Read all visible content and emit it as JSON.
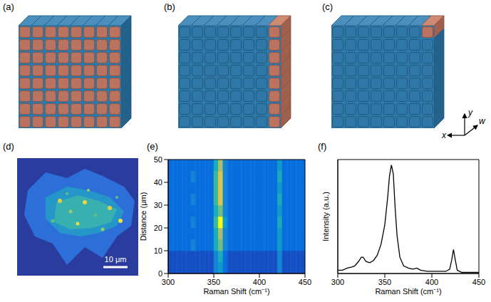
{
  "panel_labels": [
    "(a)",
    "(b)",
    "(c)",
    "(d)",
    "(e)",
    "(f)"
  ],
  "axis_key": [
    "x",
    "y",
    "w"
  ],
  "map": {
    "scale_bar": "10 μm"
  },
  "chart_data": [
    {
      "type": "heatmap",
      "xlabel": "Raman Shift (cm⁻¹)",
      "ylabel": "Distance (μm)",
      "xlim": [
        300,
        450
      ],
      "xticks": [
        300,
        350,
        400,
        450
      ],
      "ylim": [
        0,
        50
      ],
      "yticks": [
        0,
        10,
        20,
        30,
        40,
        50
      ],
      "x_bins": [
        300,
        305,
        310,
        315,
        320,
        325,
        330,
        335,
        340,
        345,
        350,
        355,
        360,
        365,
        370,
        375,
        380,
        385,
        390,
        395,
        400,
        405,
        410,
        415,
        420,
        425,
        430,
        435,
        440,
        445,
        450
      ],
      "y_bins": [
        0,
        5,
        10,
        15,
        20,
        25,
        30,
        35,
        40,
        45,
        50
      ],
      "zlim": [
        0,
        10
      ],
      "cells": [
        [
          1,
          1,
          1,
          1,
          1,
          1,
          1,
          1,
          1,
          1,
          3,
          4,
          2,
          1,
          1,
          1,
          1,
          1,
          1,
          1,
          1,
          1,
          1,
          1,
          3,
          1,
          1,
          1,
          1,
          1
        ],
        [
          1,
          1,
          1,
          1,
          1,
          1,
          1,
          1,
          1,
          1,
          3,
          5,
          2,
          1,
          1,
          1,
          1,
          1,
          1,
          1,
          1,
          1,
          1,
          1,
          3,
          1,
          1,
          1,
          1,
          1
        ],
        [
          2,
          2,
          2,
          2,
          2,
          3,
          2,
          2,
          2,
          2,
          5,
          7,
          3,
          2,
          2,
          2,
          2,
          2,
          2,
          2,
          2,
          2,
          2,
          2,
          4,
          2,
          2,
          2,
          2,
          2
        ],
        [
          2,
          2,
          2,
          2,
          2,
          2,
          2,
          2,
          2,
          2,
          5,
          8,
          3,
          2,
          2,
          2,
          2,
          2,
          2,
          2,
          2,
          2,
          2,
          2,
          4,
          2,
          2,
          2,
          2,
          2
        ],
        [
          2,
          2,
          2,
          2,
          2,
          3,
          2,
          2,
          2,
          2,
          6,
          10,
          4,
          2,
          2,
          2,
          2,
          2,
          2,
          2,
          2,
          2,
          2,
          2,
          5,
          2,
          2,
          2,
          2,
          2
        ],
        [
          2,
          2,
          2,
          2,
          2,
          2,
          2,
          2,
          2,
          2,
          5,
          7,
          3,
          2,
          2,
          2,
          2,
          2,
          2,
          2,
          2,
          2,
          2,
          2,
          4,
          2,
          2,
          2,
          2,
          2
        ],
        [
          2,
          2,
          2,
          2,
          2,
          3,
          2,
          2,
          2,
          2,
          6,
          9,
          3,
          2,
          2,
          2,
          2,
          2,
          2,
          2,
          2,
          2,
          2,
          2,
          5,
          2,
          2,
          2,
          2,
          2
        ],
        [
          2,
          2,
          2,
          2,
          2,
          2,
          2,
          2,
          2,
          2,
          6,
          9,
          3,
          2,
          2,
          2,
          2,
          2,
          2,
          2,
          2,
          2,
          2,
          2,
          4,
          2,
          2,
          2,
          2,
          2
        ],
        [
          2,
          2,
          2,
          2,
          2,
          3,
          2,
          2,
          2,
          2,
          6,
          9,
          3,
          2,
          2,
          2,
          2,
          2,
          2,
          2,
          2,
          2,
          2,
          2,
          5,
          2,
          2,
          2,
          2,
          2
        ],
        [
          2,
          2,
          2,
          2,
          2,
          2,
          2,
          2,
          2,
          2,
          5,
          8,
          3,
          2,
          2,
          2,
          2,
          2,
          2,
          2,
          2,
          2,
          2,
          2,
          4,
          2,
          2,
          2,
          2,
          2
        ]
      ]
    },
    {
      "type": "line",
      "xlabel": "Raman Shift (cm⁻¹)",
      "ylabel": "Intensity (a.u.)",
      "xlim": [
        300,
        450
      ],
      "xticks": [
        300,
        350,
        400,
        450
      ],
      "ylim": [
        0,
        1.05
      ],
      "tick_labels": "x",
      "color": "#000000",
      "x": [
        300,
        305,
        310,
        315,
        318,
        322,
        325,
        327,
        330,
        334,
        338,
        342,
        346,
        350,
        353,
        355,
        357,
        359,
        361,
        363,
        366,
        370,
        375,
        380,
        384,
        388,
        395,
        405,
        415,
        419,
        421,
        423,
        425,
        427,
        432,
        440,
        450
      ],
      "values": [
        0.03,
        0.03,
        0.05,
        0.06,
        0.07,
        0.11,
        0.15,
        0.15,
        0.11,
        0.1,
        0.12,
        0.17,
        0.27,
        0.45,
        0.7,
        0.9,
        1.0,
        0.92,
        0.6,
        0.35,
        0.15,
        0.07,
        0.05,
        0.04,
        0.05,
        0.03,
        0.02,
        0.02,
        0.02,
        0.04,
        0.12,
        0.22,
        0.12,
        0.03,
        0.01,
        0.01,
        0.01
      ]
    }
  ]
}
